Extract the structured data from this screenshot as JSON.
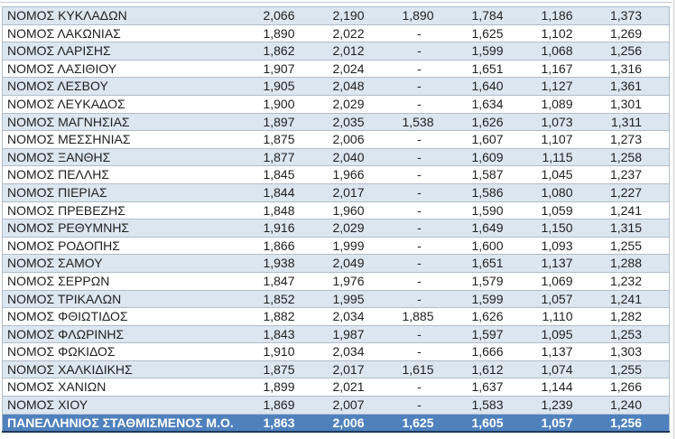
{
  "table": {
    "rows": [
      {
        "name": "ΝΟΜΟΣ ΚΥΚΛΑΔΩΝ",
        "values": [
          "2,066",
          "2,190",
          "1,890",
          "1,784",
          "1,186",
          "1,373"
        ]
      },
      {
        "name": "ΝΟΜΟΣ ΛΑΚΩΝΙΑΣ",
        "values": [
          "1,890",
          "2,022",
          "-",
          "1,625",
          "1,102",
          "1,269"
        ]
      },
      {
        "name": "ΝΟΜΟΣ ΛΑΡΙΣΗΣ",
        "values": [
          "1,862",
          "2,012",
          "-",
          "1,599",
          "1,068",
          "1,256"
        ]
      },
      {
        "name": "ΝΟΜΟΣ ΛΑΣΙΘΙΟΥ",
        "values": [
          "1,907",
          "2,024",
          "-",
          "1,651",
          "1,167",
          "1,316"
        ]
      },
      {
        "name": "ΝΟΜΟΣ ΛΕΣΒΟΥ",
        "values": [
          "1,905",
          "2,048",
          "-",
          "1,640",
          "1,127",
          "1,361"
        ]
      },
      {
        "name": "ΝΟΜΟΣ ΛΕΥΚΑΔΟΣ",
        "values": [
          "1,900",
          "2,029",
          "-",
          "1,634",
          "1,089",
          "1,301"
        ]
      },
      {
        "name": "ΝΟΜΟΣ ΜΑΓΝΗΣΙΑΣ",
        "values": [
          "1,897",
          "2,035",
          "1,538",
          "1,626",
          "1,073",
          "1,311"
        ]
      },
      {
        "name": "ΝΟΜΟΣ ΜΕΣΣΗΝΙΑΣ",
        "values": [
          "1,875",
          "2,006",
          "-",
          "1,607",
          "1,107",
          "1,273"
        ]
      },
      {
        "name": "ΝΟΜΟΣ ΞΑΝΘΗΣ",
        "values": [
          "1,877",
          "2,040",
          "-",
          "1,609",
          "1,115",
          "1,258"
        ]
      },
      {
        "name": "ΝΟΜΟΣ ΠΕΛΛΗΣ",
        "values": [
          "1,845",
          "1,966",
          "-",
          "1,587",
          "1,045",
          "1,237"
        ]
      },
      {
        "name": "ΝΟΜΟΣ ΠΙΕΡΙΑΣ",
        "values": [
          "1,844",
          "2,017",
          "-",
          "1,586",
          "1,080",
          "1,227"
        ]
      },
      {
        "name": "ΝΟΜΟΣ ΠΡΕΒΕΖΗΣ",
        "values": [
          "1,848",
          "1,960",
          "-",
          "1,590",
          "1,059",
          "1,241"
        ]
      },
      {
        "name": "ΝΟΜΟΣ ΡΕΘΥΜΝΗΣ",
        "values": [
          "1,916",
          "2,029",
          "-",
          "1,649",
          "1,150",
          "1,315"
        ]
      },
      {
        "name": "ΝΟΜΟΣ ΡΟΔΟΠΗΣ",
        "values": [
          "1,866",
          "1,999",
          "-",
          "1,600",
          "1,093",
          "1,255"
        ]
      },
      {
        "name": "ΝΟΜΟΣ ΣΑΜΟΥ",
        "values": [
          "1,938",
          "2,049",
          "-",
          "1,651",
          "1,137",
          "1,288"
        ]
      },
      {
        "name": "ΝΟΜΟΣ ΣΕΡΡΩΝ",
        "values": [
          "1,847",
          "1,976",
          "-",
          "1,579",
          "1,069",
          "1,232"
        ]
      },
      {
        "name": "ΝΟΜΟΣ ΤΡΙΚΑΛΩΝ",
        "values": [
          "1,852",
          "1,995",
          "-",
          "1,599",
          "1,057",
          "1,241"
        ]
      },
      {
        "name": "ΝΟΜΟΣ ΦΘΙΩΤΙΔΟΣ",
        "values": [
          "1,882",
          "2,034",
          "1,885",
          "1,626",
          "1,110",
          "1,282"
        ]
      },
      {
        "name": "ΝΟΜΟΣ ΦΛΩΡΙΝΗΣ",
        "values": [
          "1,843",
          "1,987",
          "-",
          "1,597",
          "1,095",
          "1,253"
        ]
      },
      {
        "name": "ΝΟΜΟΣ ΦΩΚΙΔΟΣ",
        "values": [
          "1,910",
          "2,034",
          "-",
          "1,666",
          "1,137",
          "1,303"
        ]
      },
      {
        "name": "ΝΟΜΟΣ ΧΑΛΚΙΔΙΚΗΣ",
        "values": [
          "1,875",
          "2,017",
          "1,615",
          "1,612",
          "1,074",
          "1,255"
        ]
      },
      {
        "name": "ΝΟΜΟΣ ΧΑΝΙΩΝ",
        "values": [
          "1,899",
          "2,021",
          "-",
          "1,637",
          "1,144",
          "1,266"
        ]
      },
      {
        "name": "ΝΟΜΟΣ ΧΙΟΥ",
        "values": [
          "1,869",
          "2,007",
          "-",
          "1,583",
          "1,239",
          "1,240"
        ]
      }
    ],
    "total_row": {
      "name": "ΠΑΝΕΛΛΗΝΙΟΣ ΣΤΑΘΜΙΣΜΕΝΟΣ Μ.Ο.",
      "values": [
        "1,863",
        "2,006",
        "1,625",
        "1,605",
        "1,057",
        "1,256"
      ]
    }
  },
  "colors": {
    "band_fill": "#dce6f1",
    "plain_fill": "#ffffff",
    "total_fill": "#4f81bd",
    "total_text": "#ffffff",
    "row_border": "#b2bcc9",
    "total_bottom_border": "#1b3a5f",
    "body_text": "#1f1f1f"
  }
}
